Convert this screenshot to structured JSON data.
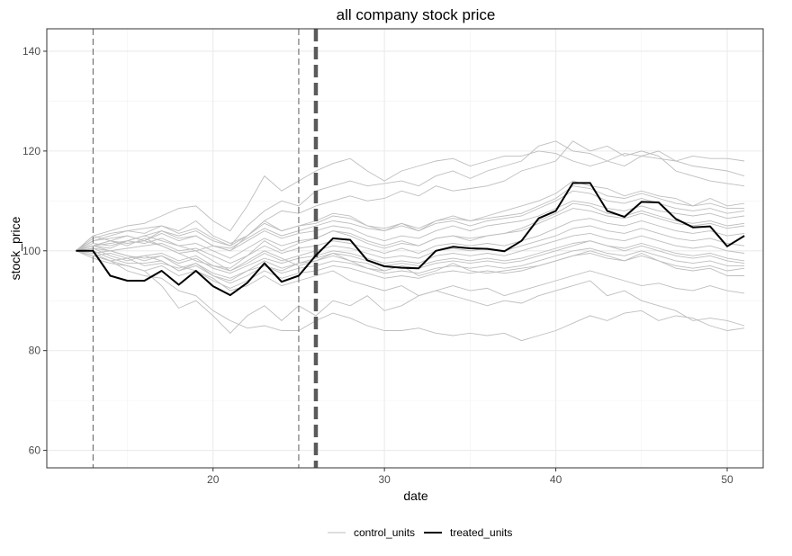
{
  "chart_data": {
    "type": "line",
    "title": "all company stock price",
    "xlabel": "date",
    "ylabel": "stock_price",
    "xlim": [
      10.3,
      52.1
    ],
    "ylim": [
      56.5,
      144.5
    ],
    "x_ticks": [
      20,
      30,
      40,
      50
    ],
    "y_ticks": [
      60,
      80,
      100,
      120,
      140
    ],
    "grid": true,
    "legend_position": "bottom",
    "legend": [
      {
        "name": "control_units",
        "color": "#bebebe"
      },
      {
        "name": "treated_units",
        "color": "#000000"
      }
    ],
    "vlines": [
      {
        "x": 13,
        "style": "dashed"
      },
      {
        "x": 25,
        "style": "dashed"
      },
      {
        "x": 26,
        "style": "dashed-bold"
      }
    ],
    "x": [
      12,
      13,
      14,
      15,
      16,
      17,
      18,
      19,
      20,
      21,
      22,
      23,
      24,
      25,
      26,
      27,
      28,
      29,
      30,
      31,
      32,
      33,
      34,
      35,
      36,
      37,
      38,
      39,
      40,
      41,
      42,
      43,
      44,
      45,
      46,
      47,
      48,
      49,
      50,
      51
    ],
    "treated": {
      "name": "treated_units",
      "color": "#000000",
      "values": [
        100,
        100,
        95,
        94,
        94,
        96,
        93.2,
        96,
        92.9,
        91.1,
        93.6,
        97.5,
        93.8,
        95,
        99.1,
        102.5,
        102.2,
        98.1,
        96.9,
        96.6,
        96.5,
        100,
        100.8,
        100.5,
        100.4,
        99.9,
        102,
        106.5,
        108,
        113.6,
        113.6,
        108,
        106.8,
        109.8,
        109.7,
        106.4,
        104.7,
        104.9,
        100.9,
        103
      ]
    },
    "controls": {
      "name": "control_units",
      "color": "#bebebe",
      "series": [
        [
          100,
          103,
          104,
          105,
          105.5,
          107,
          108.5,
          109,
          106,
          104,
          109,
          115,
          112,
          114,
          116,
          117.5,
          118.5,
          116,
          114,
          116,
          117,
          118,
          118.5,
          117,
          118,
          119,
          119,
          120,
          119.5,
          118,
          117,
          118,
          119.5,
          119,
          118.5,
          118,
          117,
          116.5,
          116,
          115
        ],
        [
          100,
          101,
          102,
          103,
          102,
          104,
          103,
          104,
          102,
          101,
          105,
          108,
          110,
          109,
          112,
          113,
          114,
          113,
          113.5,
          114,
          113,
          115,
          116,
          114.5,
          116,
          117,
          118,
          121,
          122,
          120,
          119.5,
          118,
          117,
          119,
          120,
          118,
          119,
          118.5,
          118.5,
          118
        ],
        [
          100,
          101,
          100.5,
          102,
          103,
          102,
          101,
          100,
          101,
          100,
          103,
          106,
          108,
          107.5,
          109,
          110,
          111,
          110,
          110.5,
          112,
          111,
          113,
          112,
          112.5,
          113,
          114,
          116,
          117,
          118,
          122,
          120,
          121,
          119,
          120,
          119,
          116,
          115,
          114,
          113.5,
          113
        ],
        [
          100,
          99,
          98,
          96,
          95,
          94.5,
          92,
          91,
          88,
          86,
          84.5,
          85,
          84,
          84,
          86,
          87.5,
          86.5,
          85,
          84,
          84,
          84.5,
          83.5,
          83,
          83.5,
          83,
          83.5,
          82,
          83,
          84,
          85.5,
          87,
          86,
          87.5,
          88,
          86,
          87,
          86.5,
          85,
          84,
          84.5
        ],
        [
          100,
          99,
          98,
          97,
          96,
          93,
          88.5,
          90,
          87,
          83.5,
          87,
          89,
          86,
          89,
          87,
          90,
          89,
          91,
          88,
          89,
          91,
          92,
          91,
          90,
          89,
          90,
          89.5,
          91,
          92,
          93,
          94,
          91,
          92,
          90,
          89,
          88,
          86,
          86.5,
          86,
          85
        ],
        [
          100,
          100.5,
          100,
          99,
          98.5,
          99,
          97,
          96,
          94.5,
          92,
          93,
          95,
          93,
          94,
          95,
          96,
          94,
          93,
          92,
          93,
          91,
          92,
          93,
          92,
          92.5,
          91,
          92,
          93,
          94,
          95,
          96,
          95,
          94,
          93,
          93.5,
          92.5,
          92,
          93,
          92,
          91.5
        ],
        [
          100,
          101,
          102,
          101.5,
          102,
          101,
          99.5,
          100,
          98,
          96,
          98,
          100,
          98.5,
          97,
          98,
          99.5,
          98,
          96.5,
          96,
          97,
          95,
          96,
          97.5,
          96,
          95.5,
          96,
          96.5,
          97,
          98,
          99,
          100,
          99,
          98,
          99.5,
          98,
          96.5,
          96,
          96.5,
          95,
          95
        ],
        [
          100,
          102,
          103,
          104,
          103.5,
          105,
          104,
          106,
          103,
          101.5,
          103,
          106,
          104,
          105,
          106,
          107.5,
          107,
          105,
          104,
          105.5,
          104,
          106,
          107,
          106,
          107,
          108,
          109,
          110,
          111.5,
          114,
          113,
          112.5,
          111,
          112,
          111,
          110.5,
          109,
          110.5,
          109,
          109.5
        ],
        [
          100,
          100.5,
          99,
          98,
          99,
          98,
          96,
          97.5,
          95,
          94,
          96,
          97,
          96,
          97.5,
          98,
          99,
          98,
          97.5,
          96,
          97,
          96.5,
          97.5,
          98,
          97.5,
          98,
          97.5,
          98,
          99,
          100,
          101,
          102,
          101,
          100,
          101,
          100,
          99,
          98.5,
          99,
          98,
          97.5
        ],
        [
          100,
          101,
          101.5,
          102,
          103,
          104,
          102.5,
          103,
          101,
          100,
          102,
          104,
          102.5,
          103.5,
          104,
          105,
          104.5,
          103,
          102,
          103,
          102.5,
          104,
          105,
          104,
          105,
          105.5,
          106,
          107,
          108.5,
          110,
          109.5,
          108.5,
          108,
          109,
          108,
          107.5,
          107,
          107.5,
          106.5,
          107
        ],
        [
          100,
          99.5,
          100,
          99,
          98,
          99,
          97.5,
          98.5,
          96.5,
          95.5,
          97,
          98.5,
          97.5,
          98.5,
          99,
          100,
          99.5,
          98.5,
          97.5,
          98,
          97.5,
          99,
          99.5,
          99,
          99.5,
          99,
          100,
          101,
          102,
          103,
          103.5,
          102.5,
          102,
          103,
          102,
          101,
          100.5,
          101,
          100,
          99.5
        ],
        [
          100,
          102,
          102.5,
          103,
          102,
          103.5,
          102,
          103,
          101,
          100.5,
          102.5,
          104.5,
          103,
          104,
          105,
          106,
          105.5,
          104.5,
          104,
          105,
          104,
          105.5,
          106,
          105,
          106,
          106.5,
          107,
          108.5,
          110,
          112,
          111.5,
          110,
          109.5,
          110.5,
          109.5,
          108.5,
          108,
          108.5,
          107.5,
          108
        ],
        [
          100,
          98.5,
          97.5,
          97,
          96,
          97,
          95,
          96,
          94,
          92.5,
          94,
          96,
          94.5,
          95.5,
          96,
          97,
          96.5,
          95.5,
          94.5,
          95,
          94.5,
          95.5,
          96,
          95.5,
          96,
          95.5,
          96,
          97,
          98,
          99,
          99.5,
          98.5,
          98,
          99,
          98,
          97,
          96.5,
          97,
          96,
          96.5
        ],
        [
          100,
          101.5,
          101,
          102,
          101.5,
          102.5,
          101,
          101.5,
          100,
          98.5,
          100.5,
          102.5,
          101,
          102,
          102.5,
          104,
          103.5,
          102,
          101,
          102,
          101,
          102.5,
          103,
          102.5,
          103,
          103.5,
          104,
          105.5,
          107,
          108.5,
          108,
          107,
          106.5,
          107.5,
          106.5,
          105.5,
          105,
          105.5,
          104.5,
          105
        ],
        [
          100,
          99,
          99.5,
          98.5,
          99,
          99.5,
          98,
          99,
          97,
          96,
          97.5,
          99.5,
          98,
          99,
          100,
          101,
          100.5,
          99.5,
          98.5,
          99,
          98.5,
          100,
          100.5,
          100,
          100.5,
          100,
          101,
          102,
          103,
          104.5,
          105,
          104,
          103.5,
          104.5,
          103.5,
          102.5,
          102,
          102.5,
          101.5,
          101
        ],
        [
          100,
          102.5,
          103.5,
          104,
          104.5,
          105,
          103.5,
          104.5,
          102.5,
          101,
          103,
          105.5,
          104,
          105,
          105.5,
          107,
          106.5,
          105,
          104.5,
          105.5,
          104.5,
          106,
          106.5,
          106,
          106.5,
          107,
          107.5,
          109,
          110.5,
          113,
          112.5,
          111,
          110.5,
          111.5,
          110.5,
          109.5,
          109,
          109.5,
          108.5,
          108.5
        ],
        [
          100,
          100,
          98.5,
          97.5,
          97.5,
          98,
          96,
          97,
          95,
          93.5,
          95,
          97,
          95.5,
          96.5,
          97,
          98,
          97.5,
          96.5,
          95.5,
          96,
          95.5,
          96.5,
          97,
          96.5,
          97,
          96.5,
          97,
          98,
          99,
          100,
          100.5,
          99.5,
          99,
          100,
          99,
          98,
          97.5,
          98,
          97,
          97
        ],
        [
          100,
          101,
          100,
          100.5,
          101,
          101.5,
          100,
          100.5,
          99,
          97.5,
          99,
          101,
          99.5,
          100.5,
          101,
          102,
          101.5,
          100.5,
          99.5,
          100.5,
          99.5,
          101,
          101.5,
          101,
          101.5,
          101,
          102,
          103,
          104.5,
          106,
          106.5,
          105.5,
          105,
          106,
          105,
          104,
          103.5,
          104,
          103,
          103.5
        ],
        [
          100,
          103,
          102,
          101,
          102.5,
          101,
          99.5,
          98,
          97,
          96.5,
          99,
          102,
          100,
          101.5,
          102.5,
          104,
          103,
          101.5,
          100.5,
          101.5,
          101,
          102.5,
          103,
          102,
          103,
          103.5,
          104.5,
          106,
          107.5,
          109.5,
          109,
          107.5,
          107,
          108,
          107,
          106,
          105.5,
          106,
          105,
          105.5
        ],
        [
          100,
          99.5,
          98,
          98.5,
          97,
          97.5,
          96.5,
          97.5,
          95.5,
          94.5,
          96,
          98,
          96.5,
          97.5,
          98.5,
          99.5,
          99,
          98,
          97,
          97.5,
          97,
          98,
          98.5,
          98,
          98.5,
          98,
          98.5,
          99.5,
          100.5,
          101.5,
          102,
          101,
          100.5,
          101.5,
          100.5,
          99.5,
          99,
          99.5,
          98.5,
          98
        ]
      ]
    }
  }
}
